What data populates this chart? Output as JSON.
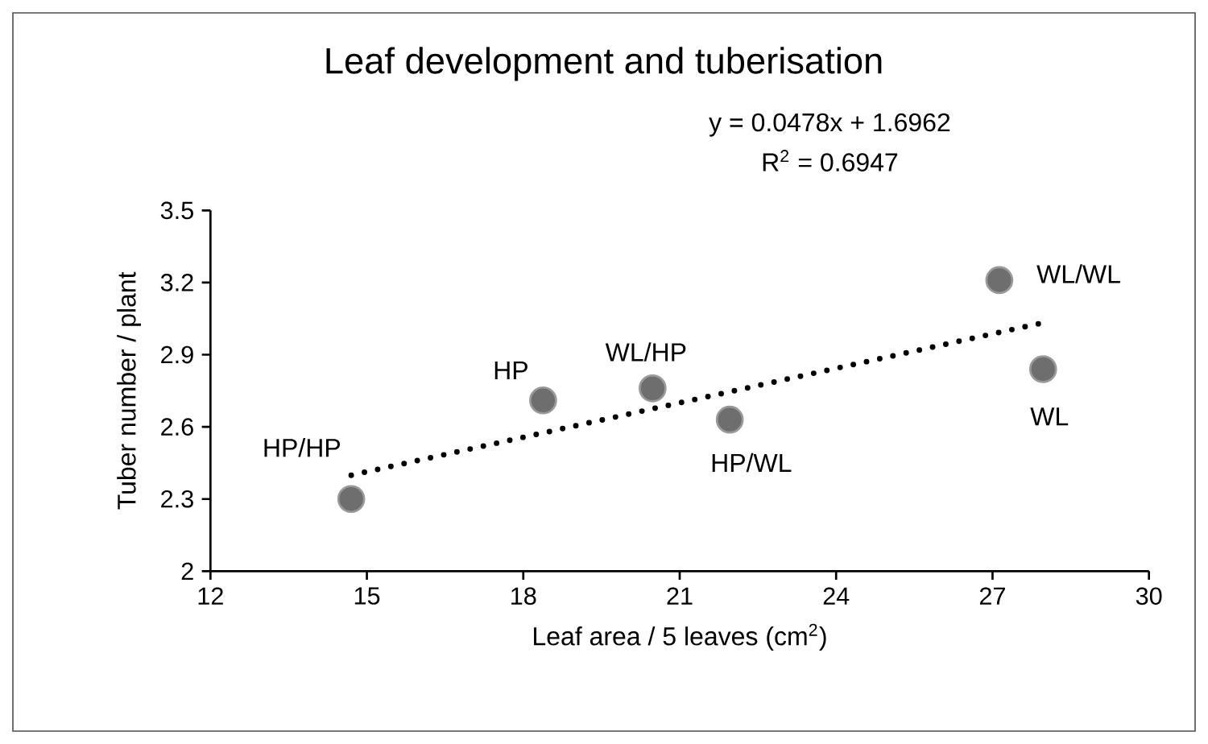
{
  "chart_data": {
    "type": "scatter",
    "title": "Leaf development and tuberisation",
    "xlabel": "Leaf area / 5 leaves (cm$^{2}$)",
    "ylabel": "Tuber number / plant",
    "xlim": [
      12,
      30
    ],
    "xticks": [
      12,
      15,
      18,
      21,
      24,
      27,
      30
    ],
    "ylim": [
      2,
      3.5
    ],
    "yticks": [
      2,
      2.3,
      2.6,
      2.9,
      3.2,
      3.5
    ],
    "grid": false,
    "series": [
      {
        "color": "#6e6e6e",
        "marker": "circle",
        "x": [
          14.7,
          18.38,
          20.48,
          21.96,
          27.13,
          27.97
        ],
        "values": [
          2.3,
          2.71,
          2.76,
          2.63,
          3.21,
          2.84
        ]
      },
      {
        "type": "line",
        "color": "#000000",
        "marker": "none",
        "line_style": "dotted",
        "x": [
          14.7,
          27.97
        ],
        "values": [
          2.399,
          3.033
        ]
      }
    ],
    "annotations": [
      "y = 0.0478x + 1.6962",
      "R$^{2}$ = 0.6947",
      {
        "text": "HP/HP",
        "x": 14.7,
        "y": 2.3
      },
      {
        "text": "HP",
        "x": 18.38,
        "y": 2.71
      },
      {
        "text": "WL/HP",
        "x": 20.48,
        "y": 2.76
      },
      {
        "text": "HP/WL",
        "x": 21.96,
        "y": 2.63
      },
      {
        "text": "WL/WL",
        "x": 27.13,
        "y": 3.21
      },
      {
        "text": "WL",
        "x": 27.97,
        "y": 2.84
      }
    ]
  }
}
